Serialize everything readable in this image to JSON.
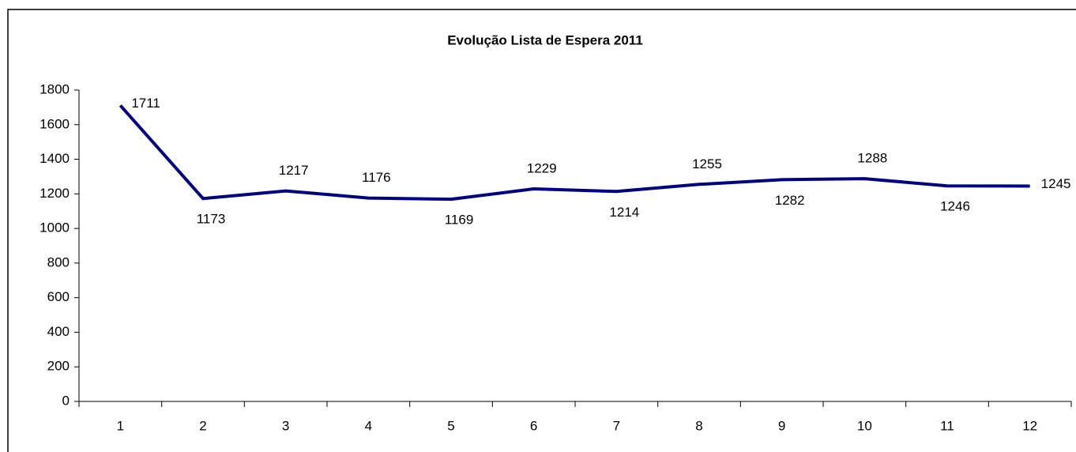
{
  "chart_data": {
    "type": "line",
    "title": "Evolução Lista de Espera 2011",
    "categories": [
      "1",
      "2",
      "3",
      "4",
      "5",
      "6",
      "7",
      "8",
      "9",
      "10",
      "11",
      "12"
    ],
    "values": [
      1711,
      1173,
      1217,
      1176,
      1169,
      1229,
      1214,
      1255,
      1282,
      1288,
      1246,
      1245
    ],
    "color": "#000080",
    "ylim": [
      0,
      1800
    ],
    "yticks": [
      0,
      200,
      400,
      600,
      800,
      1000,
      1200,
      1400,
      1600,
      1800
    ],
    "grid": false
  }
}
